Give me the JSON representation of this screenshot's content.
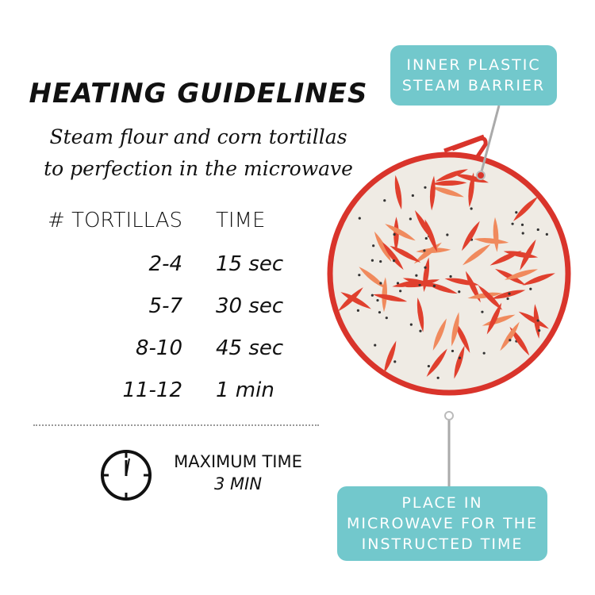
{
  "title": "HEATING GUIDELINES",
  "subtitle": [
    "Steam flour and corn tortillas",
    "to perfection in the microwave"
  ],
  "table": {
    "headers": [
      "# TORTILLAS",
      "TIME"
    ],
    "rows": [
      {
        "count": "2-4",
        "time": "15 sec"
      },
      {
        "count": "5-7",
        "time": "30 sec"
      },
      {
        "count": "8-10",
        "time": "45 sec"
      },
      {
        "count": "11-12",
        "time": "1 min"
      }
    ]
  },
  "max_time": {
    "label": "MAXIMUM TIME",
    "value": "3 MIN",
    "icon": "clock-icon"
  },
  "callouts": {
    "top": [
      "INNER PLASTIC",
      "STEAM BARRIER"
    ],
    "bottom": [
      "PLACE IN",
      "MICROWAVE FOR THE",
      "INSTRUCTED TIME"
    ]
  },
  "colors": {
    "teal": "#72C8CC",
    "red": "#D9342B",
    "fabric": "#EFEBE4"
  }
}
